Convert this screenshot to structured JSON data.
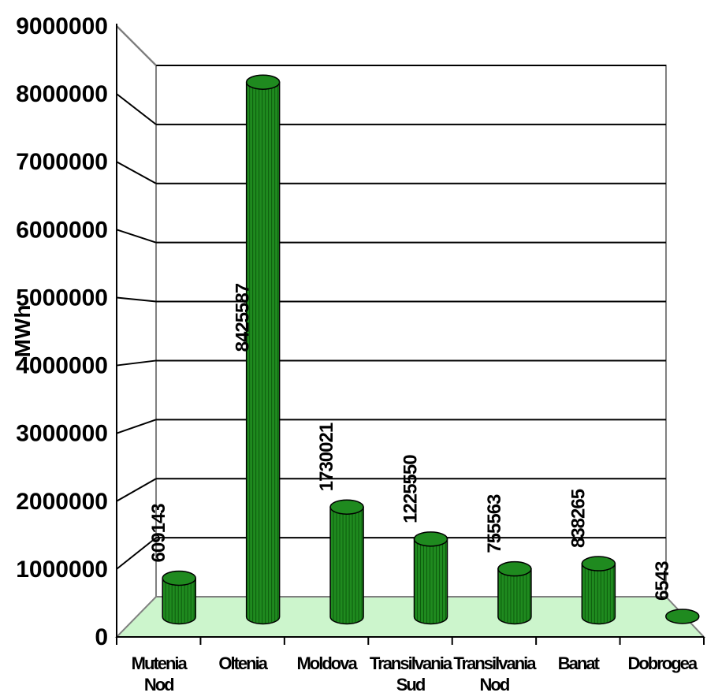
{
  "chart_data": {
    "type": "bar",
    "ylabel": "MWh",
    "ylim": [
      0,
      9000000
    ],
    "yticks": [
      "0",
      "1000000",
      "2000000",
      "3000000",
      "4000000",
      "5000000",
      "6000000",
      "7000000",
      "8000000",
      "9000000"
    ],
    "categories": [
      "Muntenia Nord",
      "Oltenia",
      "Moldova",
      "Transilvania Sud",
      "Transilvania Nord",
      "Banat",
      "Dobrogea"
    ],
    "category_labels": [
      [
        "Mutenia",
        "Nod"
      ],
      [
        "Oltenia"
      ],
      [
        "Moldova"
      ],
      [
        "Transilvania",
        "Sud"
      ],
      [
        "Transilvania",
        "Nod"
      ],
      [
        "Banat"
      ],
      [
        "Dobrogea"
      ]
    ],
    "values": [
      609143,
      8425587,
      1730021,
      1225550,
      755563,
      838265,
      6543
    ],
    "data_labels": [
      "609143",
      "8425587",
      "1730021",
      "1225550",
      "755563",
      "838265",
      "6543"
    ],
    "grid": true,
    "bar_color": "#1f8a1f",
    "floor_color": "#ccf5cc"
  }
}
